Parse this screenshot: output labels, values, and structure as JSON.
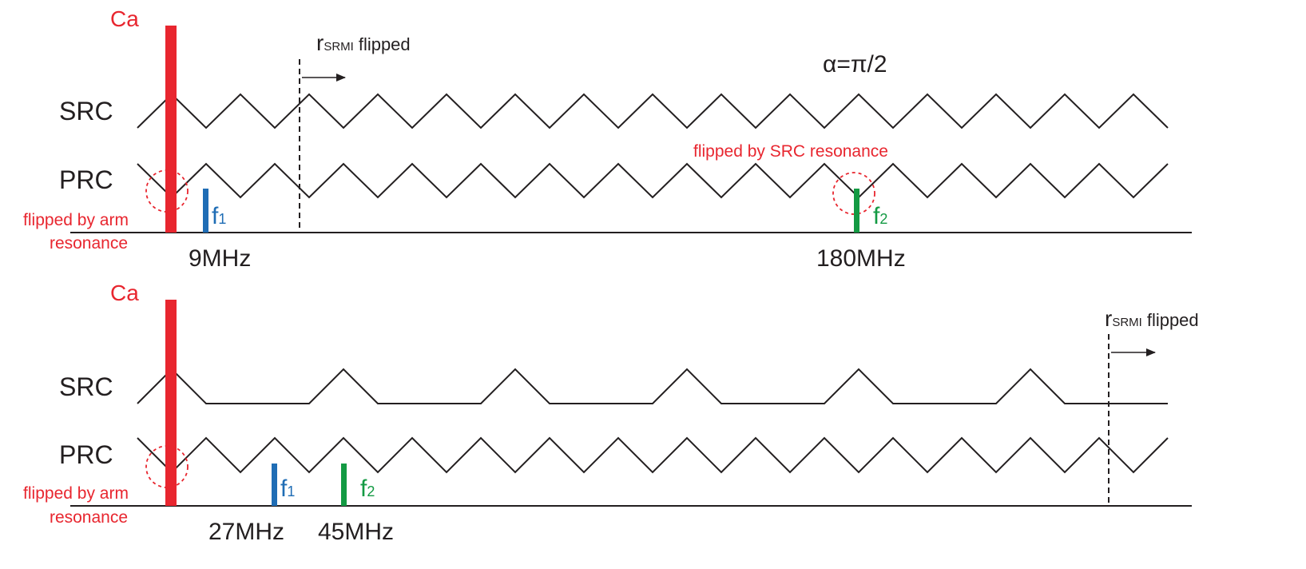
{
  "colors": {
    "ink": "#231f20",
    "red": "#e8262f",
    "blue": "#1f6db5",
    "green": "#139a43"
  },
  "top_panel": {
    "cavity_label": "Ca",
    "src_label": "SRC",
    "prc_label": "PRC",
    "flip_note": "flipped",
    "flip_note_r": "r",
    "flip_note_sub": "SRMI",
    "alpha_label": "α=π/2",
    "arm_note_line1": "flipped by arm",
    "arm_note_line2": "resonance",
    "src_note": "flipped by SRC resonance",
    "f1": {
      "base": "f",
      "sub": "1",
      "freq": "9MHz"
    },
    "f2": {
      "base": "f",
      "sub": "2",
      "freq": "180MHz"
    }
  },
  "bottom_panel": {
    "cavity_label": "Ca",
    "src_label": "SRC",
    "prc_label": "PRC",
    "flip_note": "flipped",
    "flip_note_r": "r",
    "flip_note_sub": "SRMI",
    "arm_note_line1": "flipped by arm",
    "arm_note_line2": "resonance",
    "f1": {
      "base": "f",
      "sub": "1",
      "freq": "27MHz"
    },
    "f2": {
      "base": "f",
      "sub": "2",
      "freq": "45MHz"
    }
  }
}
